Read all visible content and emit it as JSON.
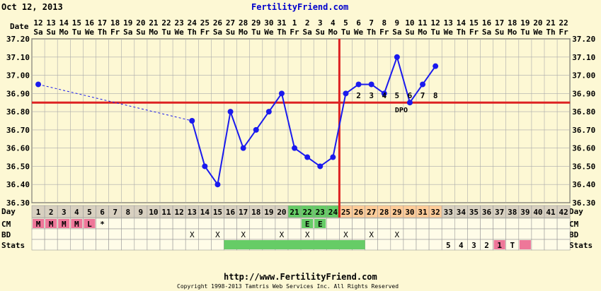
{
  "page": {
    "date": "Oct 12, 2013",
    "site": "FertilityFriend.com",
    "footer_url": "http://www.FertilityFriend.com",
    "footer_copyright": "Copyright 1998-2013 Tamtris Web Services Inc. All Rights Reserved"
  },
  "labels": {
    "date": "Date",
    "day": "Day",
    "cm": "CM",
    "bd": "BD",
    "stats": "Stats",
    "dpo": "DPO"
  },
  "colors": {
    "background": "#fdf8d4",
    "grid_cell": "#fffce8",
    "temp_line": "#1a1aee",
    "coverline": "#dd2222",
    "fertile_green": "#66cc66",
    "luteal_orange": "#ffcc99",
    "cm_pink": "#ee7799",
    "day_cell": "#d8d0c0"
  },
  "chart_data": {
    "type": "line",
    "title": "",
    "xlabel": "Day",
    "ylabel": "",
    "ylim": [
      36.3,
      37.2
    ],
    "yticks": [
      "37.20",
      "37.10",
      "37.00",
      "36.90",
      "36.80",
      "36.70",
      "36.60",
      "36.50",
      "36.40",
      "36.30"
    ],
    "days": [
      1,
      2,
      3,
      4,
      5,
      6,
      7,
      8,
      9,
      10,
      11,
      12,
      13,
      14,
      15,
      16,
      17,
      18,
      19,
      20,
      21,
      22,
      23,
      24,
      25,
      26,
      27,
      28,
      29,
      30,
      31,
      32,
      33,
      34,
      35,
      36,
      37,
      38,
      39,
      40,
      41,
      42
    ],
    "dates": [
      "12",
      "13",
      "14",
      "15",
      "16",
      "17",
      "18",
      "19",
      "20",
      "21",
      "22",
      "23",
      "24",
      "25",
      "26",
      "27",
      "28",
      "29",
      "30",
      "31",
      "1",
      "2",
      "3",
      "4",
      "5",
      "6",
      "7",
      "8",
      "9",
      "10",
      "11",
      "12",
      "13",
      "14",
      "15",
      "16",
      "17",
      "18",
      "19",
      "20",
      "21",
      "22"
    ],
    "weekdays": [
      "Sa",
      "Su",
      "Mo",
      "Tu",
      "We",
      "Th",
      "Fr",
      "Sa",
      "Su",
      "Mo",
      "Tu",
      "We",
      "Th",
      "Fr",
      "Sa",
      "Su",
      "Mo",
      "Tu",
      "We",
      "Th",
      "Fr",
      "Sa",
      "Su",
      "Mo",
      "Tu",
      "We",
      "Th",
      "Fr",
      "Sa",
      "Su",
      "Mo",
      "Tu",
      "We",
      "Th",
      "Fr",
      "Sa",
      "Su",
      "Mo",
      "Tu",
      "We",
      "Th",
      "Fr"
    ],
    "temps": [
      {
        "day": 1,
        "y": 36.95
      },
      {
        "day": 13,
        "y": 36.75
      },
      {
        "day": 14,
        "y": 36.5
      },
      {
        "day": 15,
        "y": 36.4
      },
      {
        "day": 16,
        "y": 36.8
      },
      {
        "day": 17,
        "y": 36.6
      },
      {
        "day": 18,
        "y": 36.7
      },
      {
        "day": 19,
        "y": 36.8
      },
      {
        "day": 20,
        "y": 36.9
      },
      {
        "day": 21,
        "y": 36.6
      },
      {
        "day": 22,
        "y": 36.55
      },
      {
        "day": 23,
        "y": 36.5
      },
      {
        "day": 24,
        "y": 36.55
      },
      {
        "day": 25,
        "y": 36.9
      },
      {
        "day": 26,
        "y": 36.95
      },
      {
        "day": 27,
        "y": 36.95
      },
      {
        "day": 28,
        "y": 36.9
      },
      {
        "day": 29,
        "y": 37.1
      },
      {
        "day": 30,
        "y": 36.85
      },
      {
        "day": 31,
        "y": 36.95
      },
      {
        "day": 32,
        "y": 37.05
      }
    ],
    "gap": {
      "from_day": 1,
      "to_day": 13
    },
    "coverline": 36.85,
    "ovulation_day": 24,
    "dpo_labels": [
      {
        "day": 26,
        "text": "2"
      },
      {
        "day": 27,
        "text": "3"
      },
      {
        "day": 28,
        "text": "4"
      },
      {
        "day": 29,
        "text": "5"
      },
      {
        "day": 30,
        "text": "6"
      },
      {
        "day": 31,
        "text": "7"
      },
      {
        "day": 32,
        "text": "8"
      }
    ],
    "cm": [
      {
        "day": 1,
        "text": "M",
        "pink": true
      },
      {
        "day": 2,
        "text": "M",
        "pink": true
      },
      {
        "day": 3,
        "text": "M",
        "pink": true
      },
      {
        "day": 4,
        "text": "M",
        "pink": true
      },
      {
        "day": 5,
        "text": "L",
        "pink": true
      },
      {
        "day": 6,
        "text": "*",
        "pink": false
      },
      {
        "day": 22,
        "text": "E",
        "green": true
      },
      {
        "day": 23,
        "text": "E",
        "green": true
      }
    ],
    "bd": [
      13,
      15,
      17,
      20,
      22,
      25,
      27,
      29
    ],
    "stats": [
      {
        "day": 33,
        "text": "5"
      },
      {
        "day": 34,
        "text": "4"
      },
      {
        "day": 35,
        "text": "3"
      },
      {
        "day": 36,
        "text": "2"
      },
      {
        "day": 37,
        "text": "1",
        "pink": true
      },
      {
        "day": 38,
        "text": "T"
      },
      {
        "day": 39,
        "text": "",
        "pink": true
      }
    ],
    "stats_green": [
      16,
      26
    ],
    "fertile_days": [
      21,
      24
    ],
    "luteal_days": [
      25,
      32
    ]
  }
}
